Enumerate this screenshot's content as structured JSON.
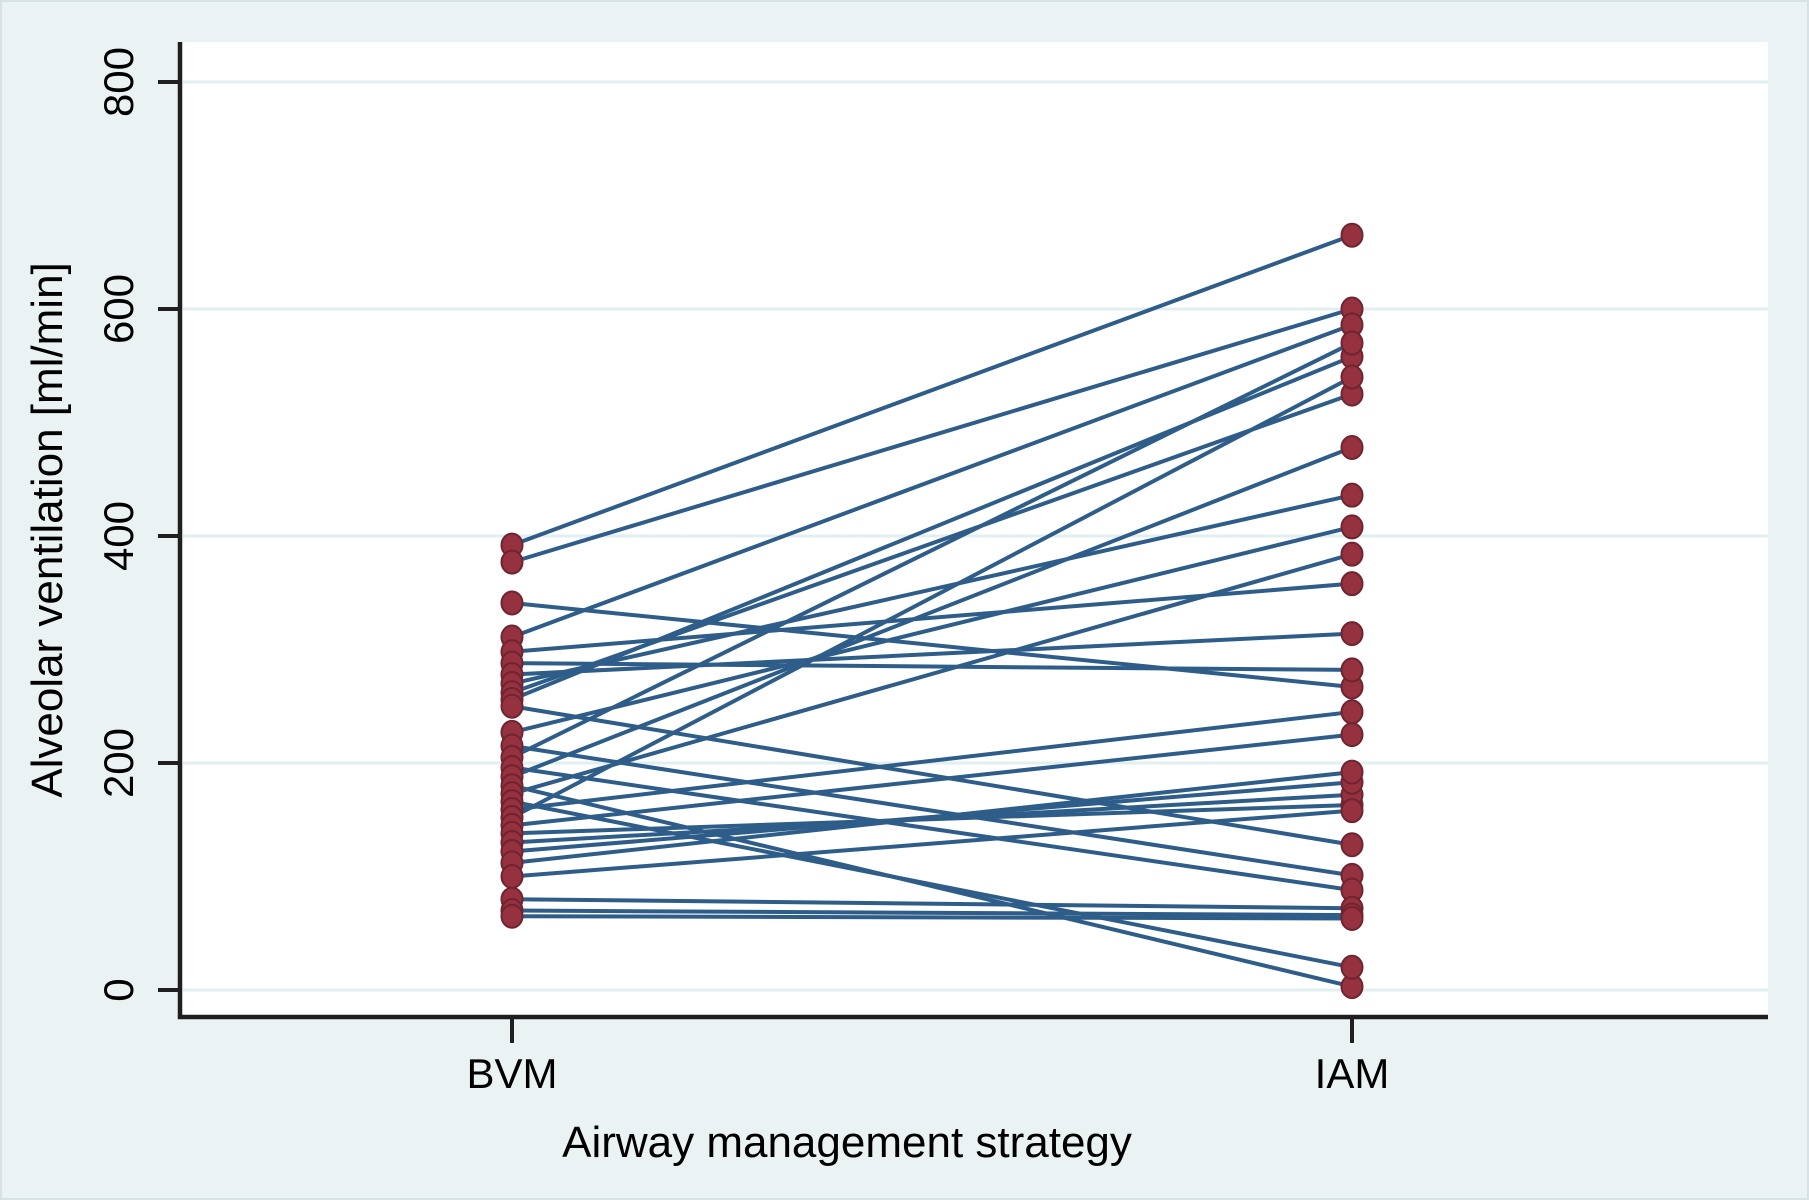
{
  "chart_data": {
    "type": "line",
    "subtype": "paired-observations-slopegraph",
    "title": "",
    "xlabel": "Airway management strategy",
    "ylabel": "Alveolar ventilation  [ml/min]",
    "categories": [
      "BVM",
      "IAM"
    ],
    "yticks": [
      0,
      200,
      400,
      600,
      800
    ],
    "ylim": [
      0,
      860
    ],
    "grid": "horizontal",
    "legend": "none",
    "colors": {
      "background": "#eaf2f3",
      "plot_background": "#ffffff",
      "gridline": "#e2eff1",
      "axis": "#1f1f1f",
      "line": "#2f5d8a",
      "marker_fill": "#963140",
      "marker_edge": "#6f2430"
    },
    "series_note": "Each pair is one subject: [BVM value, IAM value] in ml/min, estimated from plot",
    "pairs": [
      [
        392,
        665
      ],
      [
        377,
        600
      ],
      [
        341,
        267
      ],
      [
        311,
        586
      ],
      [
        298,
        358
      ],
      [
        288,
        282
      ],
      [
        278,
        314
      ],
      [
        270,
        436
      ],
      [
        262,
        525
      ],
      [
        256,
        558
      ],
      [
        250,
        128
      ],
      [
        227,
        408
      ],
      [
        215,
        101
      ],
      [
        205,
        570
      ],
      [
        196,
        88
      ],
      [
        188,
        478
      ],
      [
        180,
        3
      ],
      [
        173,
        384
      ],
      [
        166,
        20
      ],
      [
        159,
        245
      ],
      [
        152,
        540
      ],
      [
        145,
        225
      ],
      [
        138,
        163
      ],
      [
        130,
        172
      ],
      [
        122,
        183
      ],
      [
        112,
        192
      ],
      [
        100,
        158
      ],
      [
        80,
        72
      ],
      [
        70,
        66
      ],
      [
        65,
        63
      ]
    ]
  }
}
